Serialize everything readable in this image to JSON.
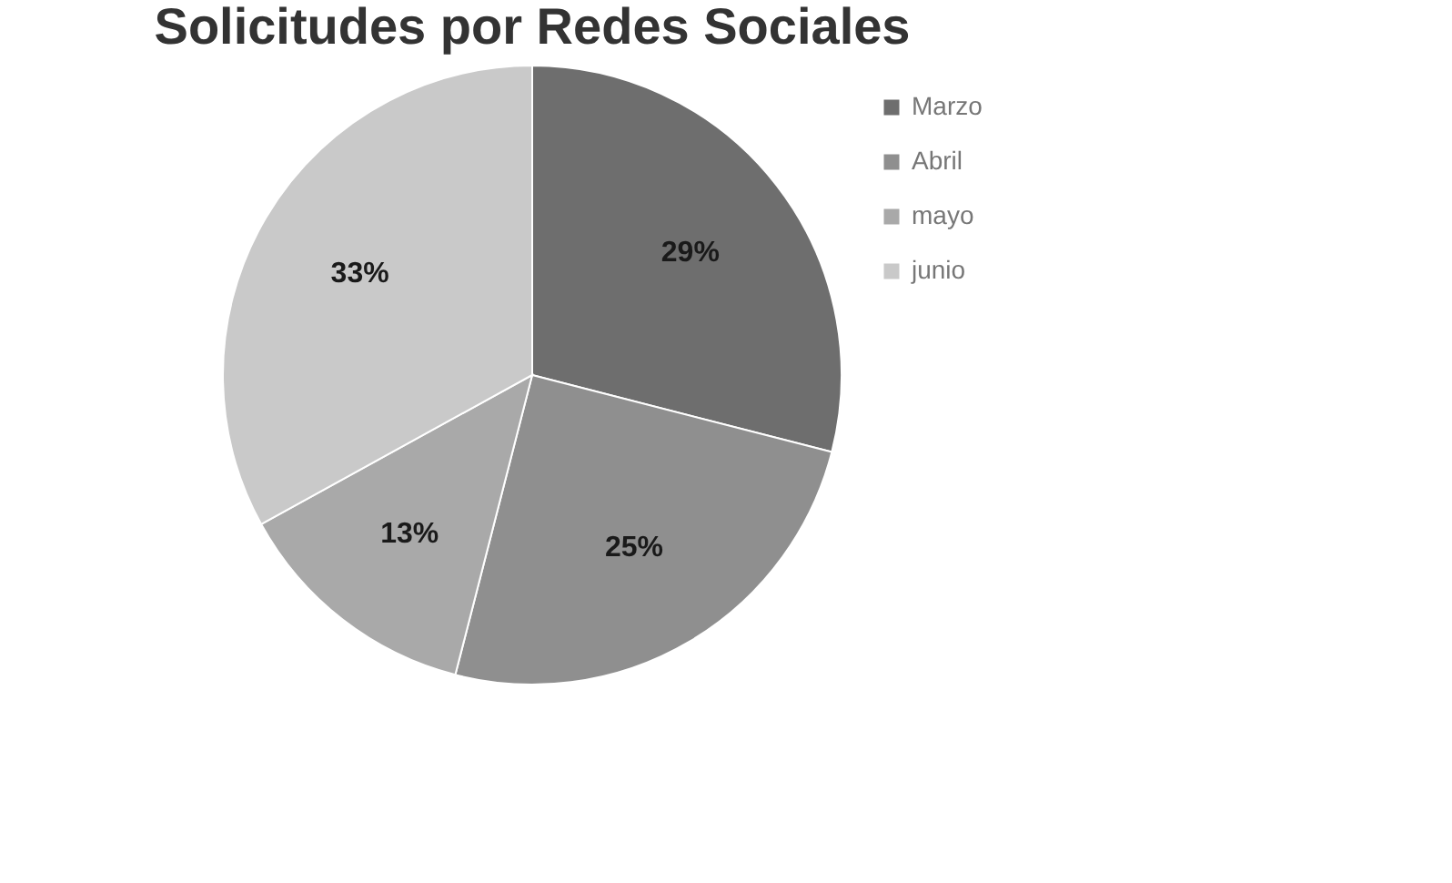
{
  "chart_data": {
    "type": "pie",
    "title": "Solicitudes por Redes Sociales",
    "categories": [
      "Marzo",
      "Abril",
      "mayo",
      "junio"
    ],
    "values": [
      29,
      25,
      13,
      33
    ],
    "value_labels": [
      "29%",
      "25%",
      "13%",
      "33%"
    ],
    "colors": [
      "#6e6e6e",
      "#8f8f8f",
      "#a9a9a9",
      "#c9c9c9"
    ],
    "legend": "right"
  }
}
